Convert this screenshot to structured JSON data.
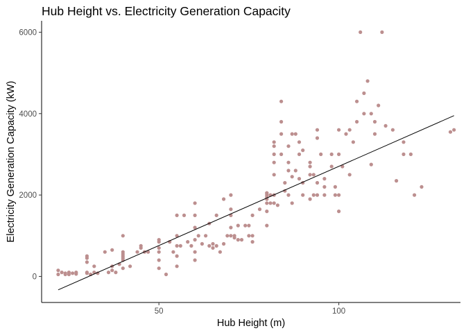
{
  "chart_data": {
    "type": "scatter",
    "title": "Hub Height vs. Electricity Generation Capacity",
    "xlabel": "Hub Height (m)",
    "ylabel": "Electricity Generation Capacity (kW)",
    "xlim": [
      17.4,
      133.8
    ],
    "ylim": [
      -640,
      6280
    ],
    "x_ticks": [
      50,
      100
    ],
    "y_ticks": [
      0,
      2000,
      4000,
      6000
    ],
    "x_tick_labels": [
      "50",
      "100"
    ],
    "y_tick_labels": [
      "0",
      "2000",
      "4000",
      "6000"
    ],
    "grid": false,
    "legend": "none",
    "point_color": "#bc8f8f",
    "trend_line": {
      "x": [
        22,
        132
      ],
      "y": [
        -330,
        3950
      ],
      "color": "#000000"
    },
    "points": [
      [
        22,
        50
      ],
      [
        22,
        150
      ],
      [
        23,
        100
      ],
      [
        24,
        80
      ],
      [
        24,
        50
      ],
      [
        25,
        100
      ],
      [
        25,
        50
      ],
      [
        26,
        80
      ],
      [
        27,
        60
      ],
      [
        27,
        100
      ],
      [
        30,
        450
      ],
      [
        30,
        500
      ],
      [
        30,
        350
      ],
      [
        30,
        100
      ],
      [
        30,
        80
      ],
      [
        31,
        50
      ],
      [
        32,
        100
      ],
      [
        32,
        250
      ],
      [
        33,
        80
      ],
      [
        35,
        600
      ],
      [
        36,
        100
      ],
      [
        37,
        150
      ],
      [
        37,
        250
      ],
      [
        37,
        650
      ],
      [
        38,
        100
      ],
      [
        39,
        300
      ],
      [
        40,
        500
      ],
      [
        40,
        450
      ],
      [
        40,
        550
      ],
      [
        40,
        400
      ],
      [
        40,
        600
      ],
      [
        40,
        1000
      ],
      [
        40,
        200
      ],
      [
        42,
        250
      ],
      [
        44,
        600
      ],
      [
        45,
        750
      ],
      [
        45,
        700
      ],
      [
        46,
        600
      ],
      [
        47,
        600
      ],
      [
        50,
        850
      ],
      [
        50,
        700
      ],
      [
        50,
        600
      ],
      [
        50,
        400
      ],
      [
        50,
        200
      ],
      [
        50,
        900
      ],
      [
        52,
        50
      ],
      [
        53,
        850
      ],
      [
        54,
        600
      ],
      [
        55,
        1500
      ],
      [
        55,
        1000
      ],
      [
        55,
        750
      ],
      [
        55,
        250
      ],
      [
        55,
        500
      ],
      [
        56,
        750
      ],
      [
        57,
        1500
      ],
      [
        58,
        850
      ],
      [
        59,
        750
      ],
      [
        60,
        1200
      ],
      [
        60,
        900
      ],
      [
        60,
        600
      ],
      [
        60,
        400
      ],
      [
        60,
        1800
      ],
      [
        60,
        1500
      ],
      [
        61,
        1000
      ],
      [
        62,
        800
      ],
      [
        63,
        1000
      ],
      [
        64,
        1300
      ],
      [
        64,
        750
      ],
      [
        65,
        800
      ],
      [
        65,
        700
      ],
      [
        66,
        750
      ],
      [
        66,
        1500
      ],
      [
        67,
        600
      ],
      [
        68,
        800
      ],
      [
        68,
        1900
      ],
      [
        69,
        1000
      ],
      [
        70,
        1200
      ],
      [
        70,
        1000
      ],
      [
        70,
        2000
      ],
      [
        70,
        1500
      ],
      [
        70,
        1650
      ],
      [
        71,
        1000
      ],
      [
        71,
        950
      ],
      [
        72,
        900
      ],
      [
        72,
        1250
      ],
      [
        73,
        900
      ],
      [
        74,
        1250
      ],
      [
        75,
        1000
      ],
      [
        75,
        1250
      ],
      [
        76,
        1500
      ],
      [
        76,
        1000
      ],
      [
        76,
        850
      ],
      [
        78,
        1650
      ],
      [
        80,
        1600
      ],
      [
        80,
        1800
      ],
      [
        80,
        1950
      ],
      [
        80,
        2050
      ],
      [
        80,
        1250
      ],
      [
        80,
        2000
      ],
      [
        80,
        2050
      ],
      [
        80,
        1900
      ],
      [
        81,
        1800
      ],
      [
        81,
        2000
      ],
      [
        82,
        1800
      ],
      [
        82,
        2000
      ],
      [
        82,
        2500
      ],
      [
        82,
        2800
      ],
      [
        82,
        3000
      ],
      [
        82,
        3200
      ],
      [
        82,
        3300
      ],
      [
        83,
        1750
      ],
      [
        84,
        3000
      ],
      [
        84,
        3500
      ],
      [
        84,
        3800
      ],
      [
        84,
        4300
      ],
      [
        85,
        2100
      ],
      [
        85,
        2300
      ],
      [
        86,
        3200
      ],
      [
        86,
        2800
      ],
      [
        86,
        2600
      ],
      [
        86,
        2000
      ],
      [
        87,
        3500
      ],
      [
        87,
        1800
      ],
      [
        87,
        2450
      ],
      [
        88,
        3500
      ],
      [
        88,
        2600
      ],
      [
        89,
        3300
      ],
      [
        89,
        2400
      ],
      [
        89,
        3000
      ],
      [
        90,
        2300
      ],
      [
        90,
        2000
      ],
      [
        90,
        3100
      ],
      [
        92,
        2800
      ],
      [
        92,
        1900
      ],
      [
        92,
        2500
      ],
      [
        92,
        2700
      ],
      [
        93,
        2500
      ],
      [
        93,
        2000
      ],
      [
        94,
        2000
      ],
      [
        94,
        3600
      ],
      [
        94,
        3400
      ],
      [
        94,
        2300
      ],
      [
        95,
        3000
      ],
      [
        96,
        2400
      ],
      [
        96,
        2000
      ],
      [
        96,
        2200
      ],
      [
        98,
        3000
      ],
      [
        98,
        2700
      ],
      [
        99,
        2200
      ],
      [
        99,
        2000
      ],
      [
        100,
        2000
      ],
      [
        100,
        1600
      ],
      [
        100,
        3600
      ],
      [
        100,
        3000
      ],
      [
        101,
        2700
      ],
      [
        102,
        3500
      ],
      [
        103,
        3600
      ],
      [
        103,
        2500
      ],
      [
        104,
        3300
      ],
      [
        105,
        4300
      ],
      [
        105,
        3800
      ],
      [
        106,
        6000
      ],
      [
        107,
        4000
      ],
      [
        107,
        4500
      ],
      [
        108,
        4800
      ],
      [
        109,
        4000
      ],
      [
        109,
        2750
      ],
      [
        110,
        3500
      ],
      [
        110,
        3800
      ],
      [
        111,
        4200
      ],
      [
        112,
        6000
      ],
      [
        113,
        3700
      ],
      [
        115,
        3600
      ],
      [
        116,
        2350
      ],
      [
        118,
        3300
      ],
      [
        118,
        3000
      ],
      [
        120,
        3000
      ],
      [
        121,
        2000
      ],
      [
        123,
        2200
      ],
      [
        131,
        3550
      ],
      [
        132,
        3600
      ]
    ]
  }
}
